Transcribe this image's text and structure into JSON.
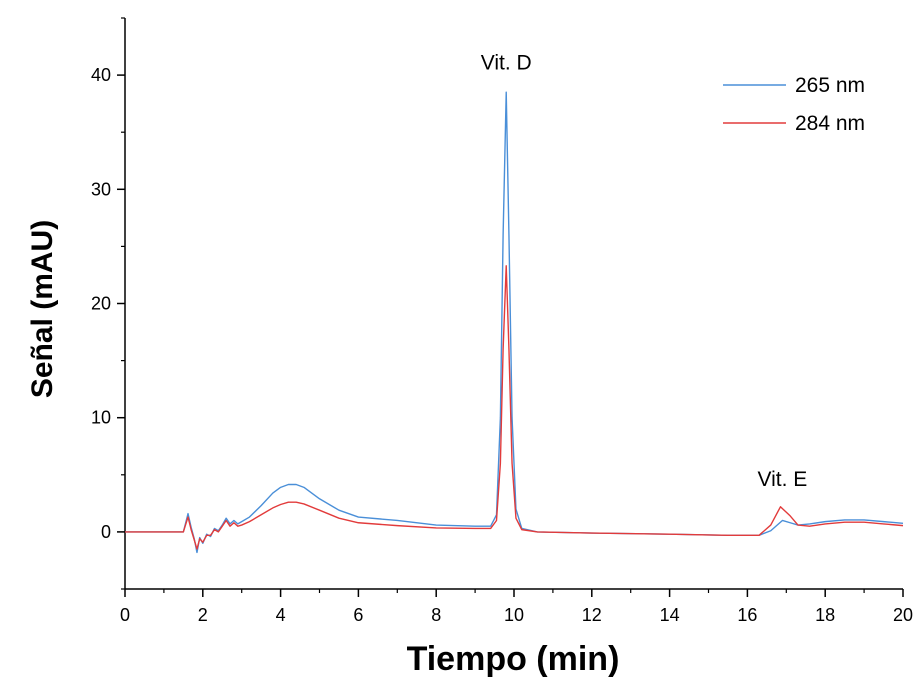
{
  "chart_data": {
    "type": "line",
    "xlabel": "Tiempo (min)",
    "ylabel": "Señal (mAU)",
    "xlim": [
      0,
      20
    ],
    "ylim": [
      -5,
      45
    ],
    "x_ticks": [
      0,
      2,
      4,
      6,
      8,
      10,
      12,
      14,
      16,
      18,
      20
    ],
    "y_ticks": [
      0,
      10,
      20,
      30,
      40
    ],
    "grid": false,
    "legend_position": "top-right",
    "colors": {
      "s265": "#4a8fd8",
      "s284": "#e23b3b"
    },
    "series": [
      {
        "name": "265 nm",
        "color": "#4a8fd8",
        "points": [
          [
            0,
            0
          ],
          [
            1.5,
            0
          ],
          [
            1.62,
            1.6
          ],
          [
            1.7,
            0.4
          ],
          [
            1.78,
            -0.6
          ],
          [
            1.85,
            -1.8
          ],
          [
            1.92,
            -0.5
          ],
          [
            2.0,
            -1.0
          ],
          [
            2.1,
            -0.2
          ],
          [
            2.2,
            -0.4
          ],
          [
            2.3,
            0.3
          ],
          [
            2.4,
            0.1
          ],
          [
            2.5,
            0.6
          ],
          [
            2.6,
            1.2
          ],
          [
            2.7,
            0.7
          ],
          [
            2.8,
            1.0
          ],
          [
            2.9,
            0.7
          ],
          [
            3.0,
            0.9
          ],
          [
            3.2,
            1.3
          ],
          [
            3.5,
            2.3
          ],
          [
            3.8,
            3.4
          ],
          [
            4.0,
            3.9
          ],
          [
            4.2,
            4.15
          ],
          [
            4.4,
            4.15
          ],
          [
            4.6,
            3.9
          ],
          [
            5.0,
            2.9
          ],
          [
            5.5,
            1.9
          ],
          [
            6.0,
            1.3
          ],
          [
            7.0,
            1.0
          ],
          [
            8.0,
            0.6
          ],
          [
            9.0,
            0.5
          ],
          [
            9.4,
            0.5
          ],
          [
            9.55,
            1.5
          ],
          [
            9.65,
            10.0
          ],
          [
            9.72,
            26.0
          ],
          [
            9.8,
            38.5
          ],
          [
            9.87,
            26.0
          ],
          [
            9.95,
            10.0
          ],
          [
            10.05,
            2.0
          ],
          [
            10.2,
            0.3
          ],
          [
            10.6,
            0.0
          ],
          [
            12,
            -0.1
          ],
          [
            14,
            -0.2
          ],
          [
            15.5,
            -0.3
          ],
          [
            16.3,
            -0.3
          ],
          [
            16.6,
            0.1
          ],
          [
            16.9,
            1.0
          ],
          [
            17.1,
            0.8
          ],
          [
            17.3,
            0.6
          ],
          [
            17.6,
            0.7
          ],
          [
            18.0,
            0.9
          ],
          [
            18.5,
            1.05
          ],
          [
            19.0,
            1.05
          ],
          [
            19.5,
            0.9
          ],
          [
            20,
            0.75
          ]
        ]
      },
      {
        "name": "284 nm",
        "color": "#e23b3b",
        "points": [
          [
            0,
            0
          ],
          [
            1.5,
            0
          ],
          [
            1.62,
            1.3
          ],
          [
            1.7,
            0.2
          ],
          [
            1.78,
            -0.7
          ],
          [
            1.85,
            -1.5
          ],
          [
            1.92,
            -0.6
          ],
          [
            2.0,
            -0.9
          ],
          [
            2.1,
            -0.3
          ],
          [
            2.2,
            -0.3
          ],
          [
            2.3,
            0.2
          ],
          [
            2.4,
            0.0
          ],
          [
            2.5,
            0.5
          ],
          [
            2.6,
            1.0
          ],
          [
            2.7,
            0.5
          ],
          [
            2.8,
            0.8
          ],
          [
            2.9,
            0.5
          ],
          [
            3.0,
            0.6
          ],
          [
            3.2,
            0.9
          ],
          [
            3.5,
            1.5
          ],
          [
            3.8,
            2.1
          ],
          [
            4.0,
            2.4
          ],
          [
            4.2,
            2.6
          ],
          [
            4.4,
            2.6
          ],
          [
            4.6,
            2.45
          ],
          [
            5.0,
            1.9
          ],
          [
            5.5,
            1.2
          ],
          [
            6.0,
            0.8
          ],
          [
            7.0,
            0.55
          ],
          [
            8.0,
            0.35
          ],
          [
            9.0,
            0.3
          ],
          [
            9.4,
            0.3
          ],
          [
            9.55,
            1.0
          ],
          [
            9.65,
            6.0
          ],
          [
            9.72,
            16.0
          ],
          [
            9.8,
            23.3
          ],
          [
            9.87,
            16.0
          ],
          [
            9.95,
            6.0
          ],
          [
            10.05,
            1.2
          ],
          [
            10.2,
            0.2
          ],
          [
            10.6,
            0.0
          ],
          [
            12,
            -0.1
          ],
          [
            14,
            -0.2
          ],
          [
            15.5,
            -0.3
          ],
          [
            16.3,
            -0.3
          ],
          [
            16.6,
            0.6
          ],
          [
            16.85,
            2.2
          ],
          [
            17.1,
            1.4
          ],
          [
            17.3,
            0.6
          ],
          [
            17.6,
            0.5
          ],
          [
            18.0,
            0.7
          ],
          [
            18.5,
            0.85
          ],
          [
            19.0,
            0.85
          ],
          [
            19.5,
            0.7
          ],
          [
            20,
            0.55
          ]
        ]
      }
    ],
    "annotations": [
      {
        "text": "Vit. D",
        "x": 9.8,
        "y": 40.5
      },
      {
        "text": "Vit. E",
        "x": 16.9,
        "y": 4.0
      }
    ]
  }
}
